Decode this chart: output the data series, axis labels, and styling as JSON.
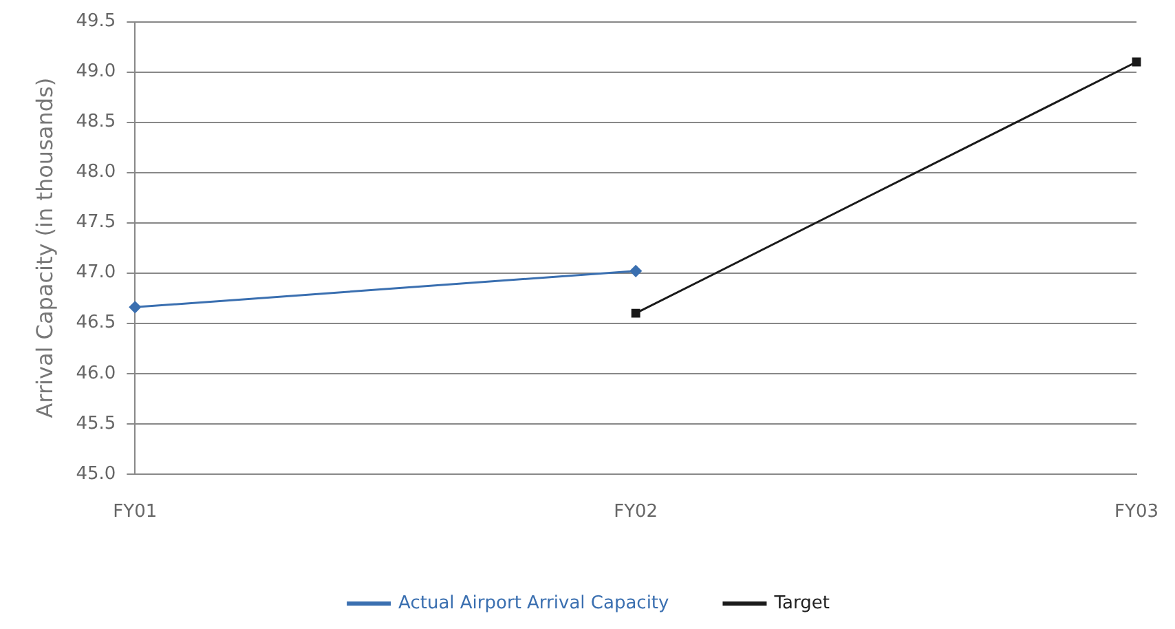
{
  "chart_data": {
    "type": "line",
    "ylabel": "Arrival Capacity (in thousands)",
    "categories": [
      "FY01",
      "FY02",
      "FY03"
    ],
    "series": [
      {
        "name": "Actual Airport Arrival Capacity",
        "color": "#3a6fb0",
        "marker": "diamond",
        "values": [
          46.66,
          47.02,
          null
        ]
      },
      {
        "name": "Target",
        "color": "#1a1a1a",
        "marker": "square",
        "values": [
          null,
          46.6,
          49.1
        ]
      }
    ],
    "ylim": [
      45.0,
      49.5
    ],
    "yticks": [
      {
        "value": 45,
        "label": "45.0"
      },
      {
        "value": 45.5,
        "label": "45.5"
      },
      {
        "value": 46,
        "label": "46.0"
      },
      {
        "value": 46.5,
        "label": "46.5"
      },
      {
        "value": 47,
        "label": "47.0"
      },
      {
        "value": 47.5,
        "label": "47.5"
      },
      {
        "value": 48,
        "label": "48.0"
      },
      {
        "value": 48.5,
        "label": "48.5"
      },
      {
        "value": 49,
        "label": "49.0"
      },
      {
        "value": 49.5,
        "label": "49.5"
      }
    ],
    "grid": "y",
    "legend": "bottom",
    "line_style": "solid"
  }
}
